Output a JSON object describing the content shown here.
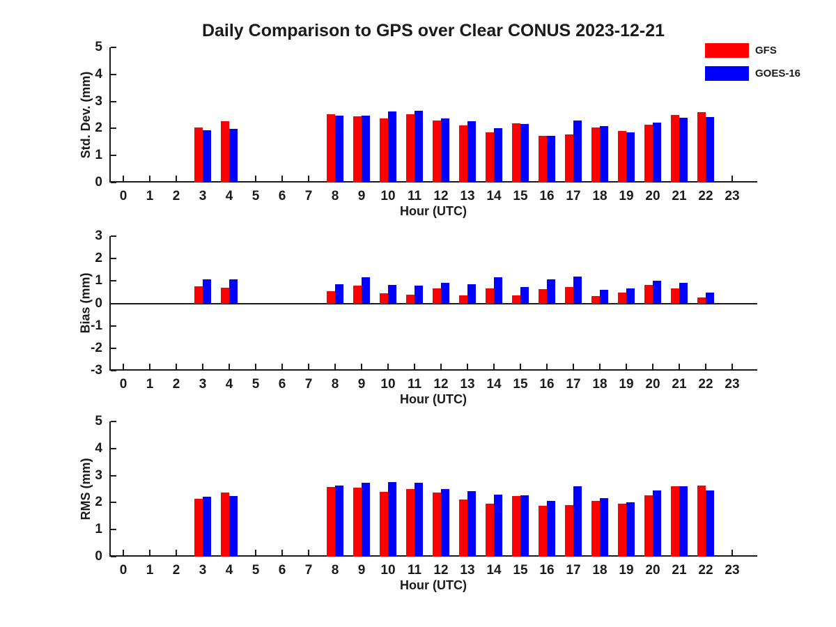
{
  "title": "Daily Comparison to GPS over Clear CONUS 2023-12-21",
  "legend": [
    {
      "label": "GFS",
      "color": "#ff0000"
    },
    {
      "label": "GOES-16",
      "color": "#0000ff"
    }
  ],
  "colors": {
    "gfs": "#ff0000",
    "goes16": "#0000ff",
    "axis": "#1a1a1a",
    "background": "#ffffff"
  },
  "chart_data": [
    {
      "type": "bar",
      "title": "",
      "ylabel": "Std. Dev. (mm)",
      "xlabel": "Hour (UTC)",
      "ylim": [
        0,
        5
      ],
      "yticks": [
        0,
        1,
        2,
        3,
        4,
        5
      ],
      "grid": false,
      "legend_position": "top-right",
      "categories": [
        "0",
        "1",
        "2",
        "3",
        "4",
        "5",
        "6",
        "7",
        "8",
        "9",
        "10",
        "11",
        "12",
        "13",
        "14",
        "15",
        "16",
        "17",
        "18",
        "19",
        "20",
        "21",
        "22",
        "23"
      ],
      "series": [
        {
          "name": "GFS",
          "color": "#ff0000",
          "values": [
            null,
            null,
            null,
            2.04,
            2.27,
            null,
            null,
            null,
            2.52,
            2.44,
            2.36,
            2.52,
            2.29,
            2.12,
            1.86,
            2.2,
            1.74,
            1.77,
            2.04,
            1.91,
            2.15,
            2.51,
            2.61,
            null
          ]
        },
        {
          "name": "GOES-16",
          "color": "#0000ff",
          "values": [
            null,
            null,
            null,
            1.94,
            1.99,
            null,
            null,
            null,
            2.48,
            2.47,
            2.63,
            2.65,
            2.36,
            2.28,
            2.0,
            2.17,
            1.73,
            2.3,
            2.08,
            1.86,
            2.22,
            2.41,
            2.42,
            null
          ]
        }
      ]
    },
    {
      "type": "bar",
      "title": "",
      "ylabel": "Bias (mm)",
      "xlabel": "Hour (UTC)",
      "ylim": [
        -3,
        3
      ],
      "yticks": [
        -3,
        -2,
        -1,
        0,
        1,
        2,
        3
      ],
      "grid": false,
      "zero_line": true,
      "categories": [
        "0",
        "1",
        "2",
        "3",
        "4",
        "5",
        "6",
        "7",
        "8",
        "9",
        "10",
        "11",
        "12",
        "13",
        "14",
        "15",
        "16",
        "17",
        "18",
        "19",
        "20",
        "21",
        "22",
        "23"
      ],
      "series": [
        {
          "name": "GFS",
          "color": "#ff0000",
          "values": [
            null,
            null,
            null,
            0.77,
            0.71,
            null,
            null,
            null,
            0.56,
            0.79,
            0.46,
            0.4,
            0.66,
            0.35,
            0.67,
            0.37,
            0.63,
            0.74,
            0.34,
            0.47,
            0.81,
            0.66,
            0.28,
            null
          ]
        },
        {
          "name": "GOES-16",
          "color": "#0000ff",
          "values": [
            null,
            null,
            null,
            1.08,
            1.07,
            null,
            null,
            null,
            0.86,
            1.18,
            0.82,
            0.79,
            0.91,
            0.86,
            1.17,
            0.72,
            1.07,
            1.2,
            0.61,
            0.68,
            1.01,
            0.92,
            0.47,
            null
          ]
        }
      ]
    },
    {
      "type": "bar",
      "title": "",
      "ylabel": "RMS (mm)",
      "xlabel": "Hour (UTC)",
      "ylim": [
        0,
        5
      ],
      "yticks": [
        0,
        1,
        2,
        3,
        4,
        5
      ],
      "grid": false,
      "categories": [
        "0",
        "1",
        "2",
        "3",
        "4",
        "5",
        "6",
        "7",
        "8",
        "9",
        "10",
        "11",
        "12",
        "13",
        "14",
        "15",
        "16",
        "17",
        "18",
        "19",
        "20",
        "21",
        "22",
        "23"
      ],
      "series": [
        {
          "name": "GFS",
          "color": "#ff0000",
          "values": [
            null,
            null,
            null,
            2.15,
            2.37,
            null,
            null,
            null,
            2.57,
            2.54,
            2.39,
            2.51,
            2.37,
            2.12,
            1.97,
            2.23,
            1.87,
            1.92,
            2.07,
            1.97,
            2.27,
            2.6,
            2.63,
            null
          ]
        },
        {
          "name": "GOES-16",
          "color": "#0000ff",
          "values": [
            null,
            null,
            null,
            2.21,
            2.23,
            null,
            null,
            null,
            2.62,
            2.72,
            2.75,
            2.74,
            2.51,
            2.43,
            2.3,
            2.27,
            2.05,
            2.6,
            2.17,
            2.0,
            2.44,
            2.6,
            2.46,
            null
          ]
        }
      ]
    }
  ]
}
